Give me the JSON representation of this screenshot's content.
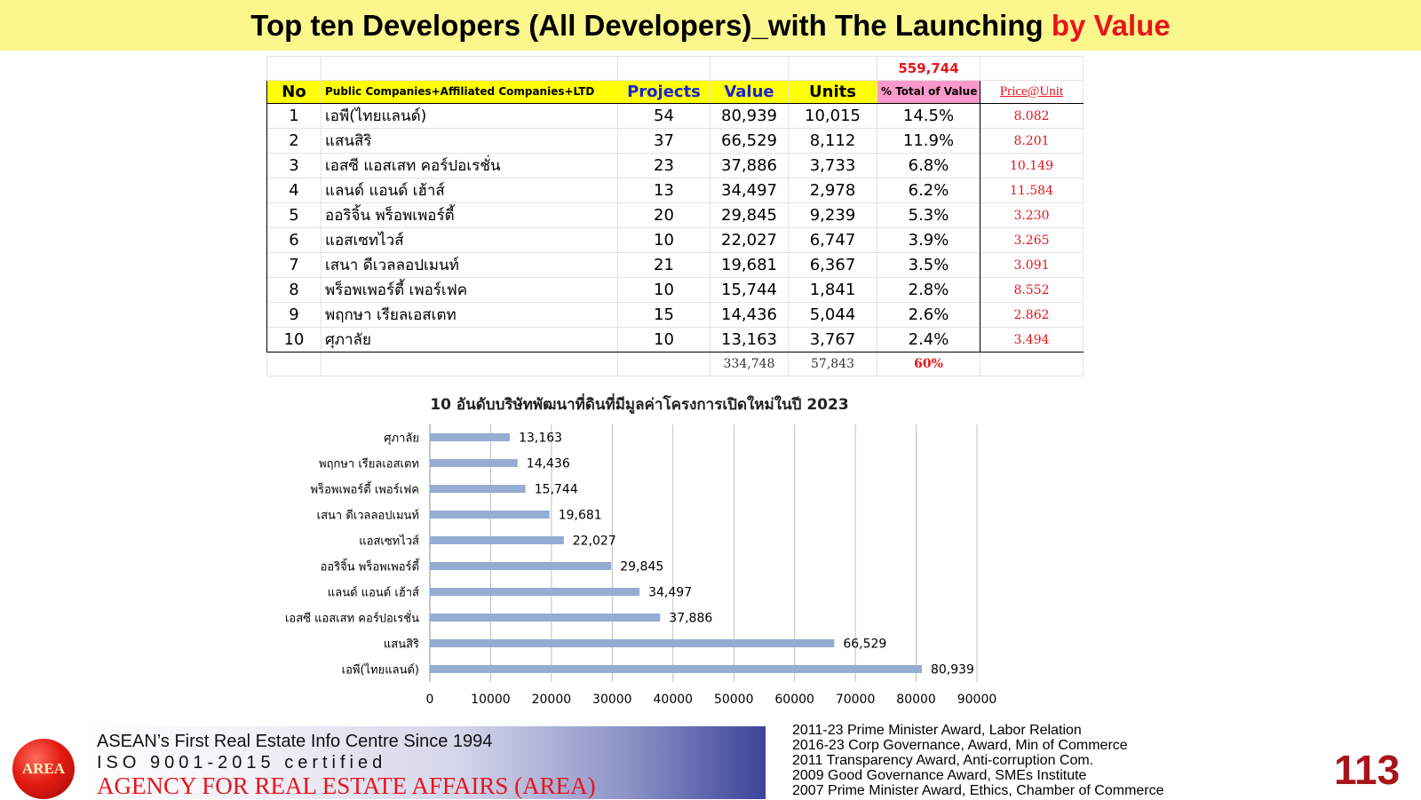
{
  "title": {
    "main": "Top ten Developers (All Developers)_with The Launching ",
    "accent": "by Value"
  },
  "table": {
    "grand_total": "559,744",
    "headers": {
      "no": "No",
      "name": "Public Companies+Affiliated Companies+LTD",
      "projects": "Projects",
      "value": "Value",
      "units": "Units",
      "pct": "% Total of Value",
      "price": "Price@Unit"
    },
    "rows": [
      {
        "no": "1",
        "name": "เอพี(ไทยแลนด์)",
        "projects": "54",
        "value": "80,939",
        "units": "10,015",
        "pct": "14.5%",
        "price": "8.082"
      },
      {
        "no": "2",
        "name": "แสนสิริ",
        "projects": "37",
        "value": "66,529",
        "units": "8,112",
        "pct": "11.9%",
        "price": "8.201"
      },
      {
        "no": "3",
        "name": "เอสซี แอสเสท คอร์ปอเรชั่น",
        "projects": "23",
        "value": "37,886",
        "units": "3,733",
        "pct": "6.8%",
        "price": "10.149"
      },
      {
        "no": "4",
        "name": "แลนด์ แอนด์ เฮ้าส์",
        "projects": "13",
        "value": "34,497",
        "units": "2,978",
        "pct": "6.2%",
        "price": "11.584"
      },
      {
        "no": "5",
        "name": "ออริจิ้น พร็อพเพอร์ตี้",
        "projects": "20",
        "value": "29,845",
        "units": "9,239",
        "pct": "5.3%",
        "price": "3.230"
      },
      {
        "no": "6",
        "name": "แอสเซทไวส์",
        "projects": "10",
        "value": "22,027",
        "units": "6,747",
        "pct": "3.9%",
        "price": "3.265"
      },
      {
        "no": "7",
        "name": "เสนา ดีเวลลอปเมนท์",
        "projects": "21",
        "value": "19,681",
        "units": "6,367",
        "pct": "3.5%",
        "price": "3.091"
      },
      {
        "no": "8",
        "name": "พร็อพเพอร์ตี้ เพอร์เฟค",
        "projects": "10",
        "value": "15,744",
        "units": "1,841",
        "pct": "2.8%",
        "price": "8.552"
      },
      {
        "no": "9",
        "name": "พฤกษา เรียลเอสเตท",
        "projects": "15",
        "value": "14,436",
        "units": "5,044",
        "pct": "2.6%",
        "price": "2.862"
      },
      {
        "no": "10",
        "name": "ศุภาลัย",
        "projects": "10",
        "value": "13,163",
        "units": "3,767",
        "pct": "2.4%",
        "price": "3.494"
      }
    ],
    "totals": {
      "value": "334,748",
      "units": "57,843",
      "pct": "60%"
    }
  },
  "chart_data": {
    "type": "bar",
    "orientation": "horizontal",
    "title": "10 อันดับบริษัทพัฒนาที่ดินที่มีมูลค่าโครงการเปิดใหม่ในปี 2023",
    "categories": [
      "เอพี(ไทยแลนด์)",
      "แสนสิริ",
      "เอสซี แอสเสท คอร์ปอเรชั่น",
      "แลนด์ แอนด์ เฮ้าส์",
      "ออริจิ้น พร็อพเพอร์ตี้",
      "แอสเซทไวส์",
      "เสนา ดีเวลลอปเมนท์",
      "พร็อพเพอร์ตี้ เพอร์เฟค",
      "พฤกษา เรียลเอสเตท",
      "ศุภาลัย"
    ],
    "values": [
      80939,
      66529,
      37886,
      34497,
      29845,
      22027,
      19681,
      15744,
      14436,
      13163
    ],
    "data_labels": [
      "80,939",
      "66,529",
      "37,886",
      "34,497",
      "29,845",
      "22,027",
      "19,681",
      "15,744",
      "14,436",
      "13,163"
    ],
    "xlim": [
      0,
      90000
    ],
    "xticks": [
      0,
      10000,
      20000,
      30000,
      40000,
      50000,
      60000,
      70000,
      80000,
      90000
    ],
    "grid": "vertical",
    "bar_color": "#95acd3",
    "xlabel": "",
    "ylabel": ""
  },
  "footer": {
    "logo_text": "AREA",
    "line1": "ASEAN’s First Real Estate Info Centre Since 1994",
    "line2": "ISO 9001-2015 certified",
    "line3": "AGENCY FOR REAL ESTATE AFFAIRS (AREA)",
    "awards": [
      "2011-23 Prime Minister Award, Labor Relation",
      "2016-23 Corp Governance, Award, Min of Commerce",
      "2011 Transparency Award, Anti-corruption Com.",
      "2009 Good Governance Award, SMEs Institute",
      "2007 Prime Minister Award, Ethics, Chamber of Commerce"
    ],
    "page_number": "113"
  }
}
